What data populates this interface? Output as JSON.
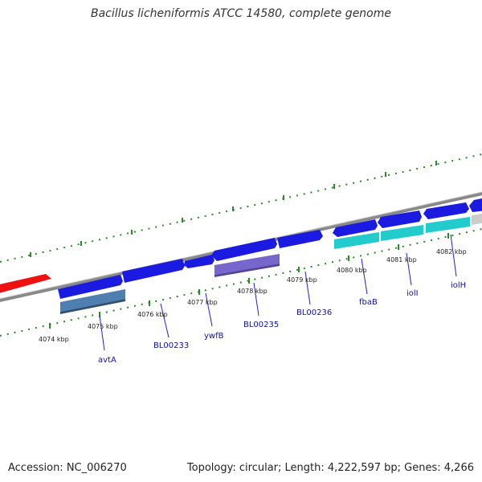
{
  "title": "Bacillus licheniformis ATCC 14580, complete genome",
  "footer": {
    "accession": "Accession: NC_006270",
    "summary": "Topology: circular; Length: 4,222,597 bp; Genes: 4,266"
  },
  "colors": {
    "backbone": "#888888",
    "tick_dots": "#2a8a2a",
    "gene_blue": "#1a1ae0",
    "gene_red": "#ee1111",
    "gene_cyan": "#22cccc",
    "gene_steel": "#4f7fb0",
    "gene_purple": "#7766cc",
    "gene_gray": "#cccccc",
    "label_line": "#2222cc",
    "label_text": "#1010a0"
  },
  "ticks": [
    {
      "label": "4074 kbp"
    },
    {
      "label": "4075 kbp"
    },
    {
      "label": "4076 kbp"
    },
    {
      "label": "4077 kbp"
    },
    {
      "label": "4078 kbp"
    },
    {
      "label": "4079 kbp"
    },
    {
      "label": "4080 kbp"
    },
    {
      "label": "4081 kbp"
    },
    {
      "label": "4082 kbp"
    }
  ],
  "genes": [
    {
      "name": "avtA"
    },
    {
      "name": "BL00233"
    },
    {
      "name": "ywfB"
    },
    {
      "name": "BL00235"
    },
    {
      "name": "BL00236"
    },
    {
      "name": "fbaB"
    },
    {
      "name": "iolI"
    },
    {
      "name": "iolH"
    }
  ]
}
